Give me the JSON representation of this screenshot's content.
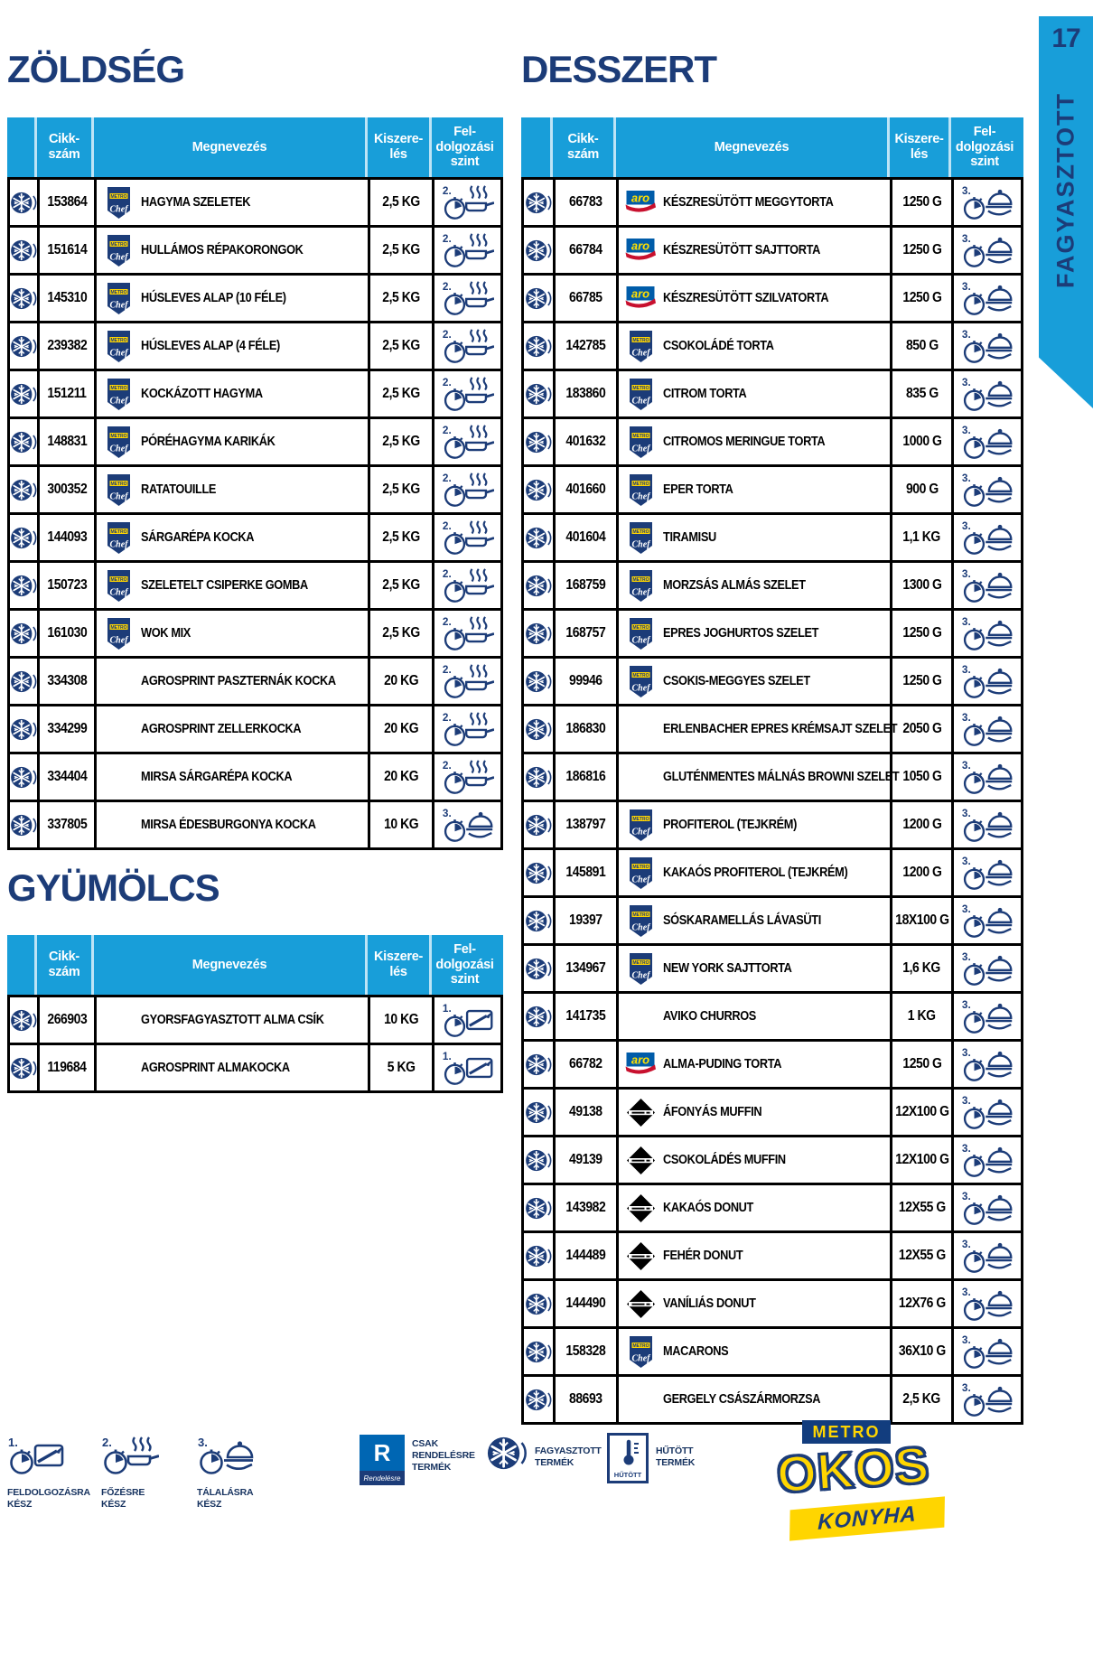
{
  "page": {
    "number": "17",
    "sidebar_tab": "FAGYASZTOTT"
  },
  "colors": {
    "azure": "#189ED9",
    "navy": "#1C3C78",
    "yellow": "#FFD500",
    "aro_blue": "#005CA9",
    "aro_red": "#C8102E"
  },
  "headers": {
    "cikkszam": "Cikk-\nszám",
    "megnevezes": "Megnevezés",
    "kiszereles": "Kiszere-\nlés",
    "feldolgozasi": "Fel-\ndolgozási\nszint"
  },
  "sections": [
    {
      "title": "ZÖLDSÉG",
      "rows": [
        {
          "id": "153864",
          "brand": "metro-chef",
          "name": "HAGYMA SZELETEK",
          "pack": "2,5 KG",
          "level": 2
        },
        {
          "id": "151614",
          "brand": "metro-chef",
          "name": "HULLÁMOS RÉPAKORONGOK",
          "pack": "2,5 KG",
          "level": 2
        },
        {
          "id": "145310",
          "brand": "metro-chef",
          "name": "HÚSLEVES ALAP (10 FÉLE)",
          "pack": "2,5 KG",
          "level": 2
        },
        {
          "id": "239382",
          "brand": "metro-chef",
          "name": "HÚSLEVES ALAP (4 FÉLE)",
          "pack": "2,5 KG",
          "level": 2
        },
        {
          "id": "151211",
          "brand": "metro-chef",
          "name": "KOCKÁZOTT HAGYMA",
          "pack": "2,5 KG",
          "level": 2
        },
        {
          "id": "148831",
          "brand": "metro-chef",
          "name": "PÓRÉHAGYMA KARIKÁK",
          "pack": "2,5 KG",
          "level": 2
        },
        {
          "id": "300352",
          "brand": "metro-chef",
          "name": "RATATOUILLE",
          "pack": "2,5 KG",
          "level": 2
        },
        {
          "id": "144093",
          "brand": "metro-chef",
          "name": "SÁRGARÉPA KOCKA",
          "pack": "2,5 KG",
          "level": 2
        },
        {
          "id": "150723",
          "brand": "metro-chef",
          "name": "SZELETELT CSIPERKE GOMBA",
          "pack": "2,5 KG",
          "level": 2
        },
        {
          "id": "161030",
          "brand": "metro-chef",
          "name": "WOK MIX",
          "pack": "2,5 KG",
          "level": 2
        },
        {
          "id": "334308",
          "brand": null,
          "name": "AGROSPRINT PASZTERNÁK KOCKA",
          "pack": "20 KG",
          "level": 2
        },
        {
          "id": "334299",
          "brand": null,
          "name": "AGROSPRINT ZELLERKOCKA",
          "pack": "20 KG",
          "level": 2
        },
        {
          "id": "334404",
          "brand": null,
          "name": "MIRSA SÁRGARÉPA KOCKA",
          "pack": "20 KG",
          "level": 2
        },
        {
          "id": "337805",
          "brand": null,
          "name": "MIRSA ÉDESBURGONYA KOCKA",
          "pack": "10 KG",
          "level": 3
        }
      ]
    },
    {
      "title": "GYÜMÖLCS",
      "rows": [
        {
          "id": "266903",
          "brand": null,
          "name": "GYORSFAGYASZTOTT ALMA CSÍK",
          "pack": "10 KG",
          "level": 1
        },
        {
          "id": "119684",
          "brand": null,
          "name": "AGROSPRINT ALMAKOCKA",
          "pack": "5 KG",
          "level": 1
        }
      ]
    },
    {
      "title": "DESSZERT",
      "rows": [
        {
          "id": "66783",
          "brand": "aro",
          "name": "KÉSZRESÜTÖTT MEGGYTORTA",
          "pack": "1250 G",
          "level": 3
        },
        {
          "id": "66784",
          "brand": "aro",
          "name": "KÉSZRESÜTÖTT SAJTTORTA",
          "pack": "1250 G",
          "level": 3
        },
        {
          "id": "66785",
          "brand": "aro",
          "name": "KÉSZRESÜTÖTT SZILVATORTA",
          "pack": "1250 G",
          "level": 3
        },
        {
          "id": "142785",
          "brand": "metro-chef",
          "name": "CSOKOLÁDÉ TORTA",
          "pack": "850 G",
          "level": 3
        },
        {
          "id": "183860",
          "brand": "metro-chef",
          "name": "CITROM TORTA",
          "pack": "835 G",
          "level": 3
        },
        {
          "id": "401632",
          "brand": "metro-chef",
          "name": "CITROMOS MERINGUE TORTA",
          "pack": "1000 G",
          "level": 3
        },
        {
          "id": "401660",
          "brand": "metro-chef",
          "name": "EPER TORTA",
          "pack": "900 G",
          "level": 3
        },
        {
          "id": "401604",
          "brand": "metro-chef",
          "name": "TIRAMISU",
          "pack": "1,1 KG",
          "level": 3
        },
        {
          "id": "168759",
          "brand": "metro-chef",
          "name": "MORZSÁS ALMÁS SZELET",
          "pack": "1300 G",
          "level": 3
        },
        {
          "id": "168757",
          "brand": "metro-chef",
          "name": "EPRES JOGHURTOS SZELET",
          "pack": "1250 G",
          "level": 3
        },
        {
          "id": "99946",
          "brand": "metro-chef",
          "name": "CSOKIS-MEGGYES SZELET",
          "pack": "1250 G",
          "level": 3
        },
        {
          "id": "186830",
          "brand": null,
          "name": "ERLENBACHER EPRES KRÉMSAJT SZELET",
          "pack": "2050 G",
          "level": 3
        },
        {
          "id": "186816",
          "brand": null,
          "name": "GLUTÉNMENTES MÁLNÁS BROWNI SZELET",
          "pack": "1050 G",
          "level": 3
        },
        {
          "id": "138797",
          "brand": "metro-chef",
          "name": "PROFITEROL (TEJKRÉM)",
          "pack": "1200 G",
          "level": 3
        },
        {
          "id": "145891",
          "brand": "metro-chef",
          "name": "KAKAÓS PROFITEROL (TEJKRÉM)",
          "pack": "1200 G",
          "level": 3
        },
        {
          "id": "19397",
          "brand": "metro-chef",
          "name": "SÓSKARAMELLÁS LÁVASÜTI",
          "pack": "18X100 G",
          "level": 3
        },
        {
          "id": "134967",
          "brand": "metro-chef",
          "name": "NEW YORK SAJTTORTA",
          "pack": "1,6 KG",
          "level": 3
        },
        {
          "id": "141735",
          "brand": null,
          "name": "AVIKO CHURROS",
          "pack": "1 KG",
          "level": 3
        },
        {
          "id": "66782",
          "brand": "aro",
          "name": "ALMA-PUDING TORTA",
          "pack": "1250 G",
          "level": 3
        },
        {
          "id": "49138",
          "brand": "diamond",
          "name": "ÁFONYÁS MUFFIN",
          "pack": "12X100 G",
          "level": 3
        },
        {
          "id": "49139",
          "brand": "diamond",
          "name": "CSOKOLÁDÉS MUFFIN",
          "pack": "12X100 G",
          "level": 3
        },
        {
          "id": "143982",
          "brand": "diamond",
          "name": "KAKAÓS DONUT",
          "pack": "12X55 G",
          "level": 3
        },
        {
          "id": "144489",
          "brand": "diamond",
          "name": "FEHÉR DONUT",
          "pack": "12X55 G",
          "level": 3
        },
        {
          "id": "144490",
          "brand": "diamond",
          "name": "VANÍLIÁS DONUT",
          "pack": "12X76 G",
          "level": 3
        },
        {
          "id": "158328",
          "brand": "metro-chef",
          "name": "MACARONS",
          "pack": "36X10 G",
          "level": 3
        },
        {
          "id": "88693",
          "brand": null,
          "name": "GERGELY CSÁSZÁRMORZSA",
          "pack": "2,5 KG",
          "level": 3
        }
      ]
    }
  ],
  "footer": {
    "legend": [
      {
        "num": "1.",
        "label": "FELDOLGOZÁSRA\nKÉSZ"
      },
      {
        "num": "2.",
        "label": "FŐZÉSRE\nKÉSZ"
      },
      {
        "num": "3.",
        "label": "TÁLALÁSRA\nKÉSZ"
      }
    ],
    "order": {
      "letter": "R",
      "caption": "Rendelésre",
      "label": "CSAK\nRENDELÉSRE\nTERMÉK"
    },
    "frozen_label": "FAGYASZTOTT\nTERMÉK",
    "chilled_box": "HŰTÖTT",
    "chilled_label": "HŰTÖTT\nTERMÉK",
    "logo": {
      "metro": "METRO",
      "okos": "OKOS",
      "konyha": "KONYHA"
    }
  }
}
